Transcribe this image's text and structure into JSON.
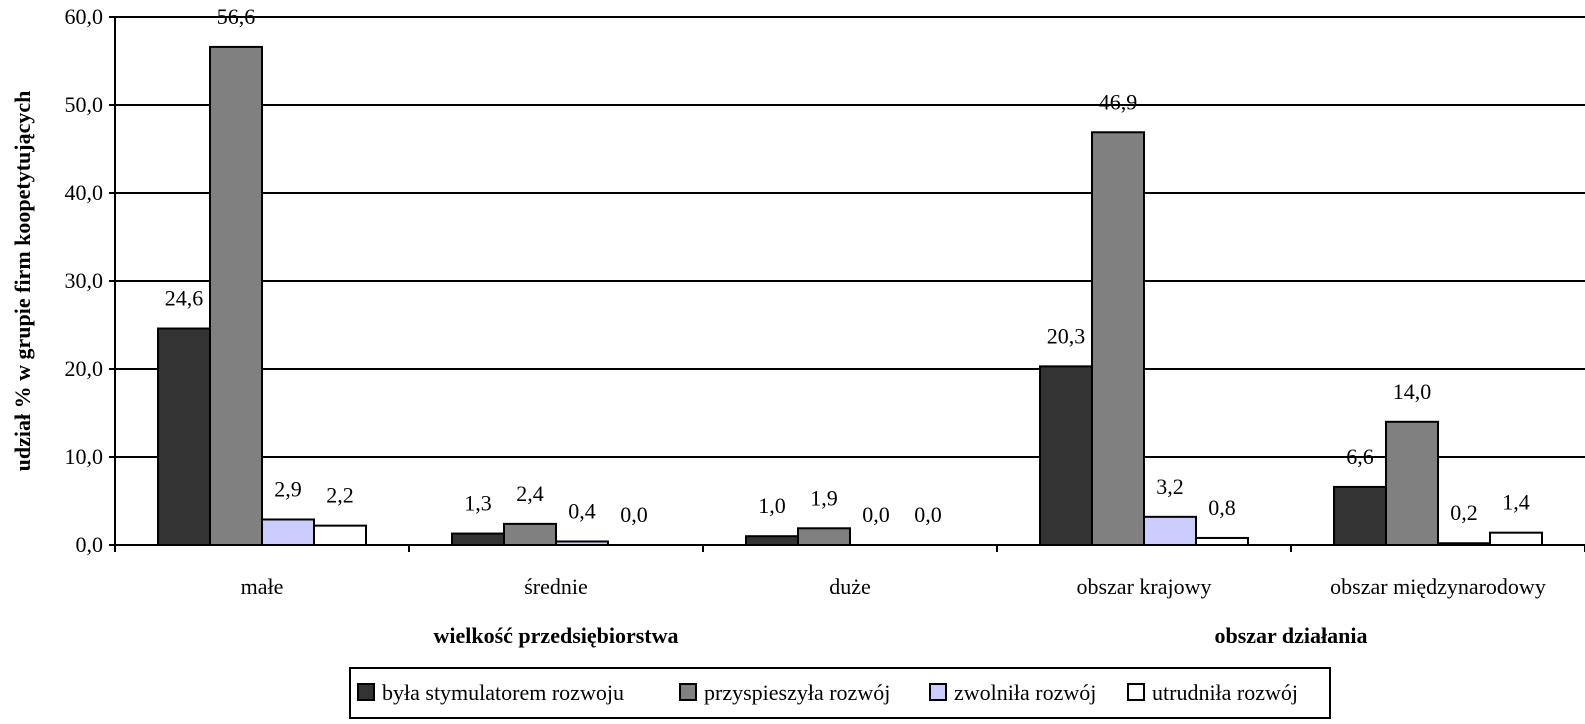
{
  "chart_data": {
    "type": "bar",
    "ylabel": "udział % w grupie firm koopetytujących",
    "ylim": [
      0,
      60
    ],
    "yticks": [
      "0,0",
      "10,0",
      "20,0",
      "30,0",
      "40,0",
      "50,0",
      "60,0"
    ],
    "ytick_values": [
      0,
      10,
      20,
      30,
      40,
      50,
      60
    ],
    "grid": true,
    "categories": [
      "małe",
      "średnie",
      "duże",
      "obszar krajowy",
      "obszar międzynarodowy"
    ],
    "groups": [
      {
        "label": "wielkość przedsiębiorstwa",
        "categories": [
          "małe",
          "średnie",
          "duże"
        ]
      },
      {
        "label": "obszar działania",
        "categories": [
          "obszar krajowy",
          "obszar międzynarodowy"
        ]
      }
    ],
    "series": [
      {
        "name": "była stymulatorem rozwoju",
        "color": "#333333",
        "values": [
          24.6,
          1.3,
          1.0,
          20.3,
          6.6
        ],
        "labels": [
          "24,6",
          "1,3",
          "1,0",
          "20,3",
          "6,6"
        ]
      },
      {
        "name": "przyspieszyła rozwój",
        "color": "#808080",
        "values": [
          56.6,
          2.4,
          1.9,
          46.9,
          14.0
        ],
        "labels": [
          "56,6",
          "2,4",
          "1,9",
          "46,9",
          "14,0"
        ]
      },
      {
        "name": "zwolniła rozwój",
        "color": "#ccccff",
        "values": [
          2.9,
          0.4,
          0.0,
          3.2,
          0.2
        ],
        "labels": [
          "2,9",
          "0,4",
          "0,0",
          "3,2",
          "0,2"
        ]
      },
      {
        "name": "utrudniła rozwój",
        "color": "#ffffff",
        "values": [
          2.2,
          0.0,
          0.0,
          0.8,
          1.4
        ],
        "labels": [
          "2,2",
          "0,0",
          "0,0",
          "0,8",
          "1,4"
        ]
      }
    ],
    "legend": "bottom"
  }
}
